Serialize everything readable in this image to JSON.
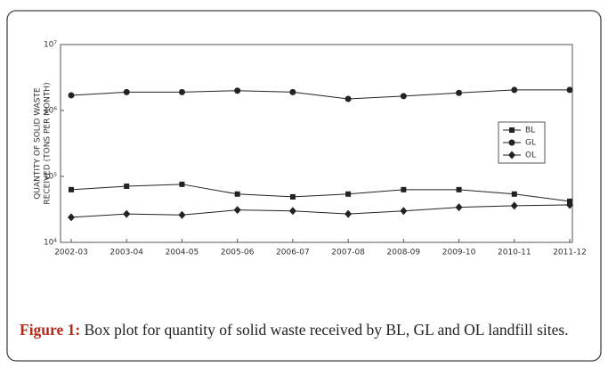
{
  "chart_data": {
    "type": "line",
    "ylabel": [
      "QUANTITY OF SOLID WASTE",
      "RECEIVED (TONS PER MONTH)"
    ],
    "categories": [
      "2002-03",
      "2003-04",
      "2004-05",
      "2005-06",
      "2006-07",
      "2007-08",
      "2008-09",
      "2009-10",
      "2010-11",
      "2011-12"
    ],
    "series": [
      {
        "name": "BL",
        "color": "#222222",
        "marker": "square",
        "values": [
          63000,
          71000,
          76000,
          54000,
          49000,
          54000,
          63000,
          63000,
          54000,
          42000
        ]
      },
      {
        "name": "GL",
        "color": "#222222",
        "marker": "circle",
        "values": [
          1700000,
          1900000,
          1900000,
          2000000,
          1900000,
          1500000,
          1650000,
          1850000,
          2050000,
          2050000
        ]
      },
      {
        "name": "OL",
        "color": "#222222",
        "marker": "diamond",
        "values": [
          24000,
          27000,
          26000,
          31000,
          30000,
          27000,
          30000,
          34000,
          36000,
          37000
        ]
      }
    ],
    "ylim": [
      10000,
      10000000
    ],
    "log_y": true,
    "yticks": [
      {
        "value": 10000,
        "label": "10⁴"
      },
      {
        "value": 100000,
        "label": "10⁵"
      },
      {
        "value": 1000000,
        "label": "10⁶"
      },
      {
        "value": 10000000,
        "label": "10⁷"
      }
    ],
    "legend": "right"
  },
  "caption": {
    "label": "Figure 1:",
    "text": "Box plot for quantity of solid waste received by BL, GL and OL landfill sites."
  }
}
